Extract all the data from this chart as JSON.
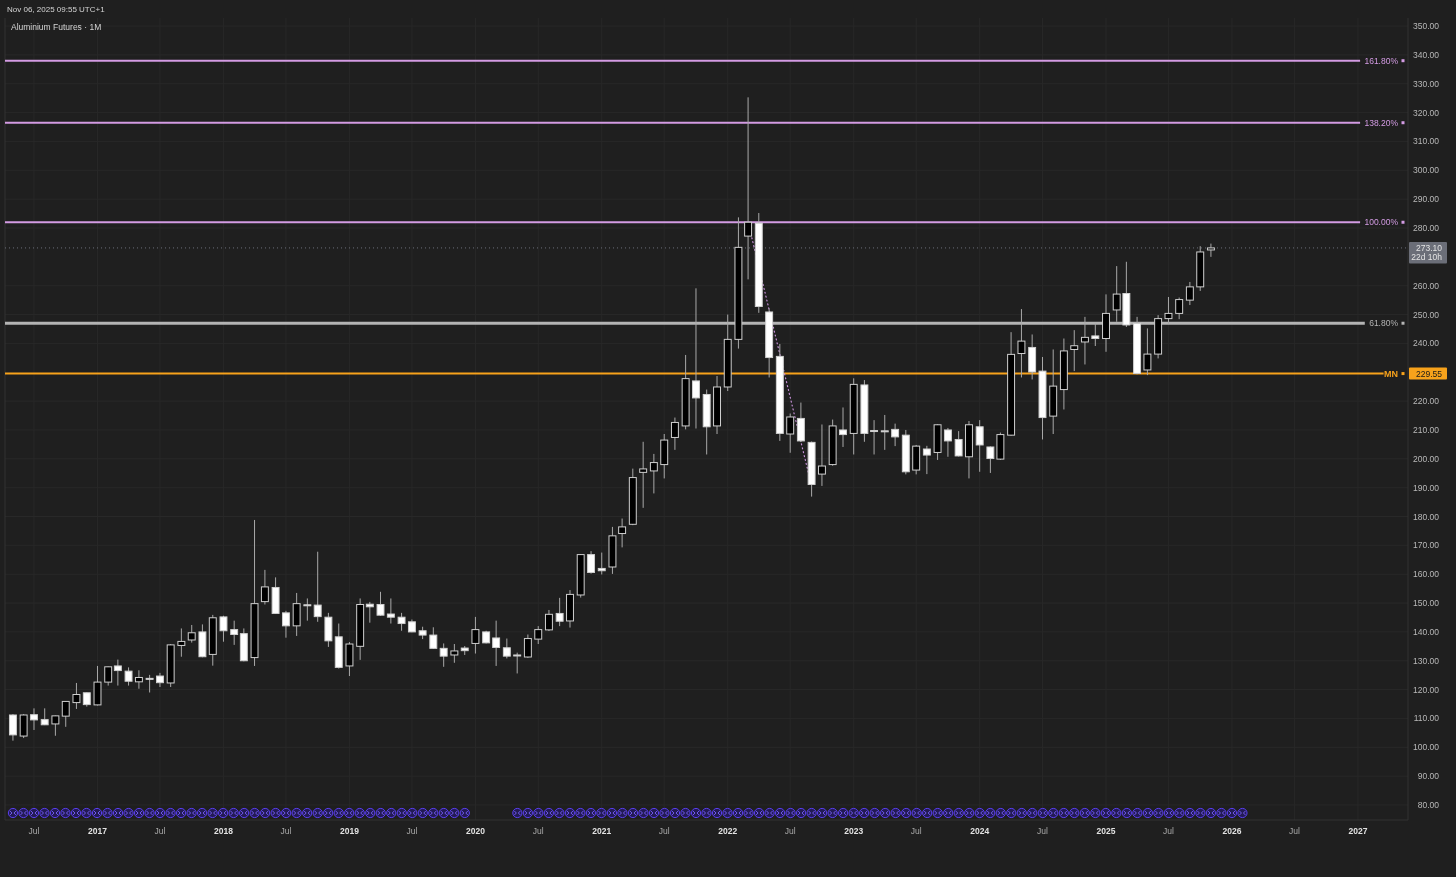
{
  "chart_data": {
    "type": "candlestick",
    "title": "Aluminium Futures · 1M",
    "x": [
      "2016-05",
      "2016-06",
      "2016-07",
      "2016-08",
      "2016-09",
      "2016-10",
      "2016-11",
      "2016-12",
      "2017-01",
      "2017-02",
      "2017-03",
      "2017-04",
      "2017-05",
      "2017-06",
      "2017-07",
      "2017-08",
      "2017-09",
      "2017-10",
      "2017-11",
      "2017-12",
      "2018-01",
      "2018-02",
      "2018-03",
      "2018-04",
      "2018-05",
      "2018-06",
      "2018-07",
      "2018-08",
      "2018-09",
      "2018-10",
      "2018-11",
      "2018-12",
      "2019-01",
      "2019-02",
      "2019-03",
      "2019-04",
      "2019-05",
      "2019-06",
      "2019-07",
      "2019-08",
      "2019-09",
      "2019-10",
      "2019-11",
      "2019-12",
      "2020-01",
      "2020-02",
      "2020-03",
      "2020-04",
      "2020-05",
      "2020-06",
      "2020-07",
      "2020-08",
      "2020-09",
      "2020-10",
      "2020-11",
      "2020-12",
      "2021-01",
      "2021-02",
      "2021-03",
      "2021-04",
      "2021-05",
      "2021-06",
      "2021-07",
      "2021-08",
      "2021-09",
      "2021-10",
      "2021-11",
      "2021-12",
      "2022-01",
      "2022-02",
      "2022-03",
      "2022-04",
      "2022-05",
      "2022-06",
      "2022-07",
      "2022-08",
      "2022-09",
      "2022-10",
      "2022-11",
      "2022-12",
      "2023-01",
      "2023-02",
      "2023-03",
      "2023-04",
      "2023-05",
      "2023-06",
      "2023-07",
      "2023-08",
      "2023-09",
      "2023-10",
      "2023-11",
      "2023-12",
      "2024-01",
      "2024-02",
      "2024-03",
      "2024-04",
      "2024-05",
      "2024-06",
      "2024-07",
      "2024-08",
      "2024-09",
      "2024-10",
      "2024-11",
      "2024-12",
      "2025-01",
      "2025-02",
      "2025-03",
      "2025-04",
      "2025-05",
      "2025-06",
      "2025-07",
      "2025-08",
      "2025-09",
      "2025-10",
      "2025-11"
    ],
    "ohlc": [
      [
        111.2,
        111.5,
        102.3,
        104.3
      ],
      [
        103.9,
        111.5,
        103.2,
        111.2
      ],
      [
        111.3,
        113.5,
        106.0,
        109.5
      ],
      [
        109.6,
        113.5,
        107.7,
        107.8
      ],
      [
        108.1,
        111.0,
        104.0,
        110.9
      ],
      [
        110.8,
        116.0,
        107.1,
        115.9
      ],
      [
        115.5,
        122.3,
        113.3,
        118.3
      ],
      [
        118.9,
        119.0,
        114.1,
        114.8
      ],
      [
        114.7,
        128.2,
        114.5,
        122.6
      ],
      [
        122.6,
        128.0,
        121.4,
        127.9
      ],
      [
        128.2,
        130.4,
        121.4,
        126.6
      ],
      [
        126.4,
        127.7,
        121.4,
        122.9
      ],
      [
        122.7,
        126.7,
        120.3,
        124.2
      ],
      [
        123.9,
        125.1,
        119.0,
        123.7
      ],
      [
        124.7,
        125.8,
        120.9,
        122.4
      ],
      [
        122.3,
        135.8,
        120.9,
        135.5
      ],
      [
        135.3,
        141.2,
        131.4,
        136.7
      ],
      [
        137.2,
        142.4,
        136.3,
        139.7
      ],
      [
        140.0,
        142.6,
        131.2,
        131.4
      ],
      [
        132.2,
        145.9,
        128.3,
        144.9
      ],
      [
        145.2,
        145.6,
        136.6,
        140.4
      ],
      [
        140.8,
        143.9,
        135.5,
        139.1
      ],
      [
        139.4,
        141.2,
        129.8,
        130.0
      ],
      [
        131.1,
        178.8,
        128.2,
        149.8
      ],
      [
        150.5,
        161.5,
        149.5,
        155.6
      ],
      [
        155.4,
        158.9,
        146.2,
        146.4
      ],
      [
        146.6,
        147.3,
        138.0,
        142.1
      ],
      [
        142.1,
        153.5,
        138.6,
        149.8
      ],
      [
        149.4,
        151.6,
        143.9,
        149.2
      ],
      [
        149.3,
        167.8,
        143.5,
        145.3
      ],
      [
        145.1,
        146.6,
        134.8,
        136.9
      ],
      [
        138.3,
        142.9,
        127.3,
        127.7
      ],
      [
        128.2,
        136.5,
        124.7,
        135.8
      ],
      [
        135.0,
        151.6,
        130.3,
        149.5
      ],
      [
        149.6,
        150.4,
        143.2,
        148.7
      ],
      [
        149.5,
        153.9,
        145.6,
        145.8
      ],
      [
        146.2,
        151.6,
        142.9,
        145.1
      ],
      [
        145.1,
        146.6,
        140.4,
        142.9
      ],
      [
        143.5,
        144.3,
        139.9,
        140.0
      ],
      [
        140.4,
        141.8,
        137.5,
        138.9
      ],
      [
        138.9,
        141.6,
        134.1,
        134.3
      ],
      [
        134.3,
        136.0,
        127.9,
        131.6
      ],
      [
        132.0,
        135.8,
        129.3,
        133.4
      ],
      [
        134.4,
        135.1,
        132.0,
        133.5
      ],
      [
        136.0,
        145.2,
        132.5,
        140.8
      ],
      [
        140.0,
        140.4,
        136.0,
        136.2
      ],
      [
        137.9,
        143.9,
        128.2,
        134.6
      ],
      [
        134.5,
        137.7,
        130.8,
        131.6
      ],
      [
        132.0,
        132.8,
        125.6,
        131.9
      ],
      [
        131.3,
        139.1,
        131.0,
        137.7
      ],
      [
        137.5,
        142.0,
        135.8,
        140.8
      ],
      [
        140.7,
        147.6,
        140.3,
        146.1
      ],
      [
        146.4,
        151.8,
        142.0,
        143.7
      ],
      [
        143.8,
        154.5,
        141.5,
        153.0
      ],
      [
        152.8,
        167.0,
        151.9,
        166.8
      ],
      [
        166.8,
        168.0,
        160.2,
        160.6
      ],
      [
        162.0,
        167.5,
        159.9,
        161.2
      ],
      [
        162.5,
        176.4,
        160.1,
        173.3
      ],
      [
        174.1,
        179.3,
        169.3,
        176.4
      ],
      [
        177.3,
        196.6,
        177.0,
        193.5
      ],
      [
        195.3,
        205.9,
        183.0,
        196.5
      ],
      [
        195.8,
        201.7,
        188.0,
        198.7
      ],
      [
        198.0,
        208.6,
        193.2,
        206.5
      ],
      [
        207.4,
        214.3,
        203.1,
        212.6
      ],
      [
        211.4,
        236.0,
        210.2,
        227.8
      ],
      [
        227.0,
        259.1,
        210.5,
        221.1
      ],
      [
        222.3,
        224.0,
        201.5,
        211.1
      ],
      [
        211.4,
        228.7,
        208.6,
        224.9
      ],
      [
        224.9,
        250.0,
        223.5,
        241.4
      ],
      [
        241.4,
        283.7,
        238.2,
        273.3
      ],
      [
        277.2,
        325.3,
        262.2,
        282.0
      ],
      [
        281.7,
        285.2,
        250.6,
        252.8
      ],
      [
        250.9,
        252.1,
        228.2,
        235.1
      ],
      [
        235.5,
        239.8,
        206.2,
        208.8
      ],
      [
        208.6,
        215.7,
        202.1,
        214.5
      ],
      [
        214.0,
        219.5,
        205.8,
        206.2
      ],
      [
        205.7,
        206.0,
        186.9,
        191.1
      ],
      [
        194.7,
        211.9,
        190.6,
        197.5
      ],
      [
        198.0,
        213.6,
        197.6,
        211.4
      ],
      [
        210.0,
        217.8,
        204.1,
        208.4
      ],
      [
        208.8,
        227.9,
        201.5,
        225.8
      ],
      [
        225.6,
        227.3,
        205.9,
        208.8
      ],
      [
        209.8,
        213.4,
        201.5,
        209.7
      ],
      [
        209.7,
        215.2,
        203.1,
        209.6
      ],
      [
        210.2,
        212.2,
        204.4,
        207.6
      ],
      [
        208.2,
        210.0,
        194.6,
        195.5
      ],
      [
        196.1,
        204.8,
        194.6,
        204.4
      ],
      [
        203.4,
        204.5,
        194.7,
        201.3
      ],
      [
        202.2,
        212.0,
        199.6,
        211.8
      ],
      [
        210.0,
        210.7,
        200.7,
        206.2
      ],
      [
        206.7,
        209.6,
        200.8,
        201.0
      ],
      [
        200.7,
        213.1,
        193.2,
        211.8
      ],
      [
        211.1,
        213.4,
        195.5,
        204.8
      ],
      [
        204.1,
        204.3,
        195.1,
        200.1
      ],
      [
        199.9,
        209.1,
        199.6,
        208.4
      ],
      [
        208.2,
        243.9,
        208.0,
        236.2
      ],
      [
        236.5,
        251.9,
        228.2,
        240.8
      ],
      [
        238.6,
        243.1,
        227.5,
        230.1
      ],
      [
        230.4,
        235.3,
        206.7,
        214.3
      ],
      [
        214.8,
        237.9,
        208.6,
        225.2
      ],
      [
        224.0,
        241.7,
        217.1,
        237.4
      ],
      [
        237.9,
        244.6,
        230.4,
        239.2
      ],
      [
        240.5,
        249.2,
        232.7,
        242.1
      ],
      [
        242.6,
        246.9,
        239.1,
        241.7
      ],
      [
        241.7,
        257.0,
        237.1,
        250.4
      ],
      [
        251.6,
        266.8,
        247.5,
        257.1
      ],
      [
        257.3,
        268.3,
        245.7,
        246.4
      ],
      [
        246.9,
        249.2,
        229.3,
        229.6
      ],
      [
        230.8,
        245.2,
        229.0,
        236.3
      ],
      [
        236.3,
        249.8,
        234.8,
        248.6
      ],
      [
        248.6,
        256.1,
        246.7,
        250.4
      ],
      [
        250.4,
        255.9,
        248.4,
        255.2
      ],
      [
        255.0,
        261.3,
        253.3,
        259.6
      ],
      [
        259.6,
        273.7,
        258.2,
        271.7
      ],
      [
        272.4,
        274.6,
        270.0,
        273.1
      ]
    ],
    "colors": [
      "#ffffff",
      "#000000",
      "#ffffff",
      "#ffffff",
      "#000000",
      "#000000",
      "#000000",
      "#ffffff",
      "#000000",
      "#000000",
      "#ffffff",
      "#ffffff",
      "#000000",
      "#ffffff",
      "#ffffff",
      "#000000",
      "#000000",
      "#000000",
      "#ffffff",
      "#000000",
      "#ffffff",
      "#ffffff",
      "#ffffff",
      "#000000",
      "#000000",
      "#ffffff",
      "#ffffff",
      "#000000",
      "#ffffff",
      "#ffffff",
      "#ffffff",
      "#ffffff",
      "#000000",
      "#000000",
      "#ffffff",
      "#ffffff",
      "#ffffff",
      "#ffffff",
      "#ffffff",
      "#ffffff",
      "#ffffff",
      "#ffffff",
      "#000000",
      "#ffffff",
      "#000000",
      "#ffffff",
      "#ffffff",
      "#ffffff",
      "#ffffff",
      "#000000",
      "#000000",
      "#000000",
      "#ffffff",
      "#000000",
      "#000000",
      "#ffffff",
      "#ffffff",
      "#000000",
      "#000000",
      "#000000",
      "#000000",
      "#000000",
      "#000000",
      "#000000",
      "#000000",
      "#ffffff",
      "#ffffff",
      "#000000",
      "#000000",
      "#000000",
      "#000000",
      "#ffffff",
      "#ffffff",
      "#ffffff",
      "#000000",
      "#ffffff",
      "#ffffff",
      "#000000",
      "#000000",
      "#ffffff",
      "#000000",
      "#ffffff",
      "#ffffff",
      "#ffffff",
      "#ffffff",
      "#ffffff",
      "#000000",
      "#ffffff",
      "#000000",
      "#ffffff",
      "#ffffff",
      "#000000",
      "#ffffff",
      "#ffffff",
      "#000000",
      "#000000",
      "#000000",
      "#ffffff",
      "#ffffff",
      "#000000",
      "#000000",
      "#000000",
      "#000000",
      "#ffffff",
      "#000000",
      "#000000",
      "#ffffff",
      "#ffffff",
      "#000000",
      "#000000",
      "#000000",
      "#000000",
      "#000000",
      "#000000",
      "#000000"
    ],
    "series": [
      {
        "type": "line",
        "x": [
          "2022-03",
          "2022-09"
        ],
        "values": [
          282,
          190.5
        ],
        "color": "#c58fd6",
        "line_style": "dotted"
      }
    ],
    "xlim": [
      "2016-04-08",
      "2027-05-26"
    ],
    "xticks": [
      {
        "value": "2016-07",
        "label": "Jul"
      },
      {
        "value": "2017-01",
        "label": "2017"
      },
      {
        "value": "2017-07",
        "label": "Jul"
      },
      {
        "value": "2018-01",
        "label": "2018"
      },
      {
        "value": "2018-07",
        "label": "Jul"
      },
      {
        "value": "2019-01",
        "label": "2019"
      },
      {
        "value": "2019-07",
        "label": "Jul"
      },
      {
        "value": "2020-01",
        "label": "2020"
      },
      {
        "value": "2020-07",
        "label": "Jul"
      },
      {
        "value": "2021-01",
        "label": "2021"
      },
      {
        "value": "2021-07",
        "label": "Jul"
      },
      {
        "value": "2022-01",
        "label": "2022"
      },
      {
        "value": "2022-07",
        "label": "Jul"
      },
      {
        "value": "2023-01",
        "label": "2023"
      },
      {
        "value": "2023-07",
        "label": "Jul"
      },
      {
        "value": "2024-01",
        "label": "2024"
      },
      {
        "value": "2024-07",
        "label": "Jul"
      },
      {
        "value": "2025-01",
        "label": "2025"
      },
      {
        "value": "2025-07",
        "label": "Jul"
      },
      {
        "value": "2026-01",
        "label": "2026"
      },
      {
        "value": "2026-07",
        "label": "Jul"
      },
      {
        "value": "2027-01",
        "label": "2027"
      }
    ],
    "ylim": [
      74.8,
      352.8
    ],
    "yticks": [
      {
        "value": 80,
        "label": "80.00"
      },
      {
        "value": 90,
        "label": "90.00"
      },
      {
        "value": 100,
        "label": "100.00"
      },
      {
        "value": 110,
        "label": "110.00"
      },
      {
        "value": 120,
        "label": "120.00"
      },
      {
        "value": 130,
        "label": "130.00"
      },
      {
        "value": 140,
        "label": "140.00"
      },
      {
        "value": 150,
        "label": "150.00"
      },
      {
        "value": 160,
        "label": "160.00"
      },
      {
        "value": 170,
        "label": "170.00"
      },
      {
        "value": 180,
        "label": "180.00"
      },
      {
        "value": 190,
        "label": "190.00"
      },
      {
        "value": 200,
        "label": "200.00"
      },
      {
        "value": 210,
        "label": "210.00"
      },
      {
        "value": 220,
        "label": "220.00"
      },
      {
        "value": 229.55,
        "label": "229.55"
      },
      {
        "value": 240,
        "label": "240.00"
      },
      {
        "value": 250,
        "label": "250.00"
      },
      {
        "value": 260,
        "label": "260.00"
      },
      {
        "value": 273.1,
        "label": "273.10"
      },
      {
        "value": 280,
        "label": "280.00"
      },
      {
        "value": 290,
        "label": "290.00"
      },
      {
        "value": 300,
        "label": "300.00"
      },
      {
        "value": 310,
        "label": "310.00"
      },
      {
        "value": 320,
        "label": "320.00"
      },
      {
        "value": 330,
        "label": "330.00"
      },
      {
        "value": 340,
        "label": "340.00"
      },
      {
        "value": 350,
        "label": "350.00"
      }
    ],
    "grid": true,
    "ref_lines": [
      {
        "axis": "y",
        "value": 338,
        "color": "#d39be3"
      },
      {
        "axis": "y",
        "value": 316.5,
        "color": "#d39be3"
      },
      {
        "axis": "y",
        "value": 282,
        "color": "#d39be3"
      },
      {
        "axis": "y",
        "value": 247,
        "color": "#b4b4b4"
      },
      {
        "axis": "y",
        "value": 229.55,
        "label": "MN",
        "color": "#f7a21b"
      },
      {
        "axis": "y",
        "value": 273.1,
        "color": "#6b6e78",
        "line_style": "dotted"
      }
    ],
    "annotations": [
      "Nov 06, 2025 09:55 UTC+1",
      "161.80%",
      "138.20%",
      "100.00%",
      "61.80%",
      "22d 10h"
    ]
  }
}
